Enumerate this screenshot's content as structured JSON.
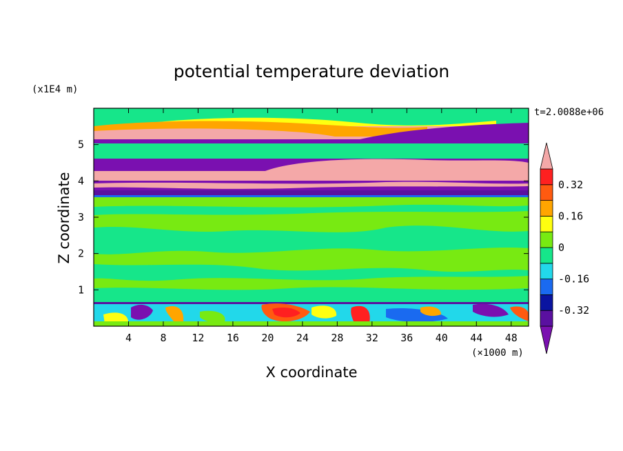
{
  "chart_data": {
    "type": "heatmap",
    "title": "potential temperature deviation",
    "xlabel": "X coordinate",
    "ylabel": "Z coordinate",
    "x_unit": "(×1000 m)",
    "y_unit": "(x1E4 m)",
    "time_label": "t=2.0088e+06",
    "xlim": [
      0,
      50
    ],
    "ylim": [
      0,
      6
    ],
    "x_ticks": [
      "4",
      "8",
      "12",
      "16",
      "20",
      "24",
      "28",
      "32",
      "36",
      "40",
      "44",
      "48"
    ],
    "y_ticks": [
      "1",
      "2",
      "3",
      "4",
      "5"
    ],
    "colorbar": {
      "levels": [
        -0.4,
        -0.32,
        -0.24,
        -0.16,
        -0.08,
        0,
        0.08,
        0.16,
        0.24,
        0.32,
        0.4
      ],
      "tick_labels": [
        "0.32",
        "0.16",
        "0",
        "-0.16",
        "-0.32"
      ],
      "colors_low_to_high": [
        "#7a10b0",
        "#5a10a0",
        "#0a14a0",
        "#1a6af0",
        "#22d8ea",
        "#16e68a",
        "#78ea12",
        "#ffff10",
        "#ffa500",
        "#ff5a10",
        "#ff2020",
        "#f4a8a8"
      ],
      "extend": "both"
    },
    "bands": [
      {
        "z_from": 5.85,
        "z_to": 6.0,
        "dominant": "#16e68a"
      },
      {
        "z_from": 5.0,
        "z_to": 5.85,
        "dominant": "#7a10b0"
      },
      {
        "z_from": 4.5,
        "z_to": 5.0,
        "dominant": "#16e68a"
      },
      {
        "z_from": 3.55,
        "z_to": 4.5,
        "dominant": "#f4a8a8"
      },
      {
        "z_from": 0.65,
        "z_to": 3.55,
        "dominant": "#78ea12"
      },
      {
        "z_from": 0.0,
        "z_to": 0.65,
        "dominant": "#22d8ea"
      }
    ]
  }
}
